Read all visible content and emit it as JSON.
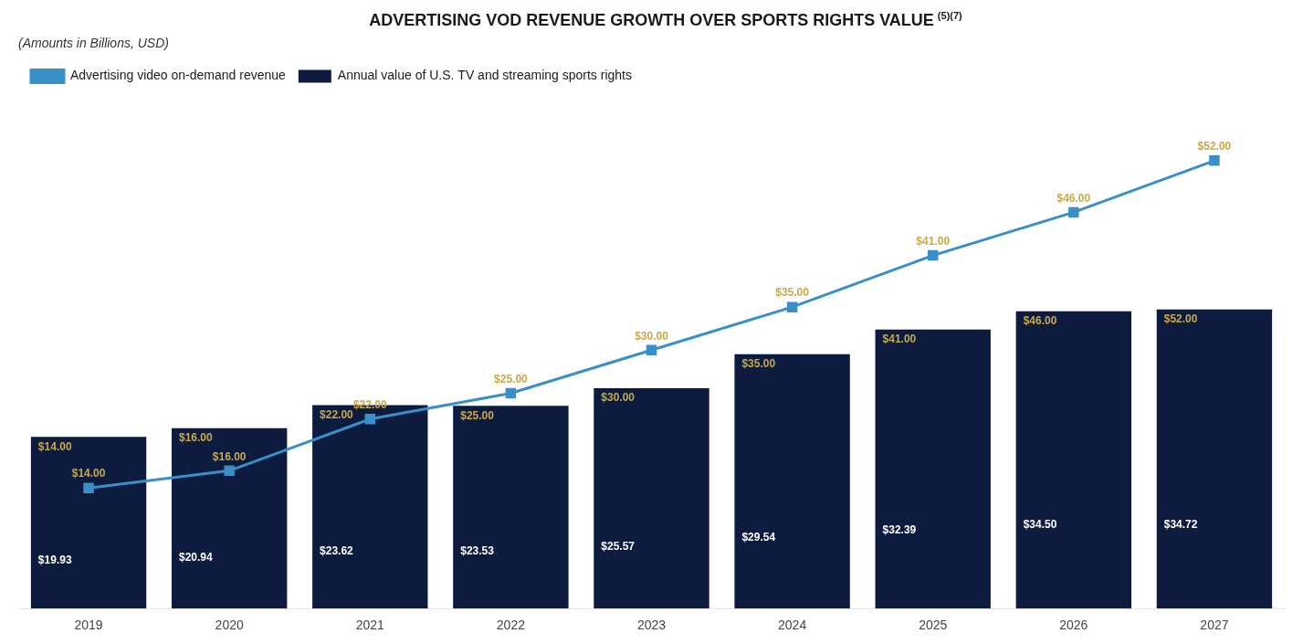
{
  "chart_data": {
    "type": "bar",
    "title": "ADVERTISING VOD REVENUE GROWTH OVER SPORTS RIGHTS VALUE",
    "subtitle": "(Amounts in Billions, USD)",
    "annotations": [
      "(5)(7)"
    ],
    "categories": [
      "2019",
      "2020",
      "2021",
      "2022",
      "2023",
      "2024",
      "2025",
      "2026",
      "2027"
    ],
    "series": [
      {
        "name": "Annual value of U.S. TV and streaming sports rights",
        "type": "bar",
        "color": "#0d1b3e",
        "values": [
          19.93,
          20.94,
          23.62,
          23.53,
          25.57,
          29.54,
          32.39,
          34.5,
          34.72
        ],
        "value_labels": [
          "$19.93",
          "$20.94",
          "$23.62",
          "$23.53",
          "$25.57",
          "$29.54",
          "$32.39",
          "$34.50",
          "$34.72"
        ]
      },
      {
        "name": "Advertising video on-demand revenue",
        "type": "line",
        "color": "#3a8fc7",
        "marker": "square",
        "values": [
          14.0,
          16.0,
          22.0,
          25.0,
          30.0,
          35.0,
          41.0,
          46.0,
          52.0
        ],
        "value_labels": [
          "$14.00",
          "$16.00",
          "$22.00",
          "$25.00",
          "$30.00",
          "$35.00",
          "$41.00",
          "$46.00",
          "$52.00"
        ]
      }
    ],
    "ylim": [
      0,
      60
    ],
    "grid": false,
    "legend": "upper left",
    "data_labels": true,
    "tick_labels": "x"
  }
}
